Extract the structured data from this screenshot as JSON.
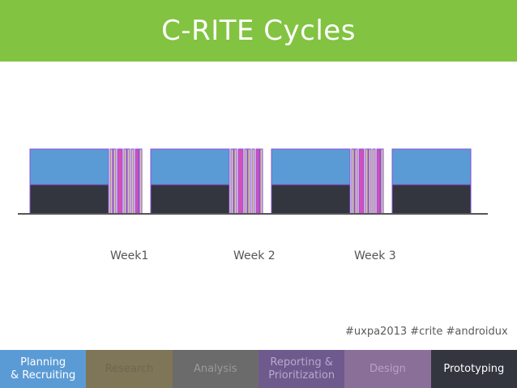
{
  "header": {
    "title": "C-RITE Cycles",
    "color": "#82c341"
  },
  "colors": {
    "research": "#5b9bd5",
    "prototyping": "#33353f",
    "design": "#d24fba",
    "analysis_stripe": "#d8c9a0",
    "outline": "#8a4fd6",
    "baseline": "#555555"
  },
  "weeks": [
    {
      "label": "Week1"
    },
    {
      "label": "Week 2"
    },
    {
      "label": "Week 3"
    }
  ],
  "hashtags": "#uxpa2013 #crite #androidux",
  "legend": [
    {
      "label_line1": "Planning",
      "label_line2": "& Recruiting",
      "bg": "#5b9bd5",
      "fg": "#ffffff"
    },
    {
      "label_line1": "Research",
      "label_line2": "",
      "bg": "#7f7557",
      "fg": "#6f6650"
    },
    {
      "label_line1": "Analysis",
      "label_line2": "",
      "bg": "#6b6b6b",
      "fg": "#9a9a9a"
    },
    {
      "label_line1": "Reporting &",
      "label_line2": "Prioritization",
      "bg": "#6e5a8c",
      "fg": "#b8a8d0"
    },
    {
      "label_line1": "Design",
      "label_line2": "",
      "bg": "#8a7099",
      "fg": "#b8a0c4"
    },
    {
      "label_line1": "Prototyping",
      "label_line2": "",
      "bg": "#33353f",
      "fg": "#ffffff"
    }
  ]
}
